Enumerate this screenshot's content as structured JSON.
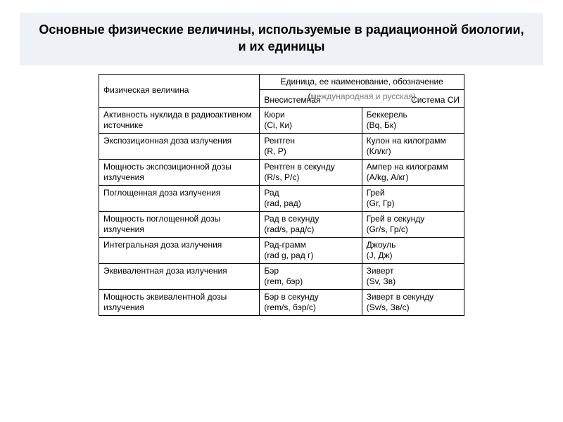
{
  "title": "Основные физические величины, используемые в радиационной биологии, и их единицы",
  "colors": {
    "page_bg": "#ffffff",
    "title_band_bg": "#eef2f6",
    "border": "#000000",
    "text": "#000000",
    "ghost_text": "#7a7a7a"
  },
  "typography": {
    "title_fontsize_pt": 14,
    "body_fontsize_pt": 9,
    "font_family": "Arial"
  },
  "table": {
    "column_widths_pct": [
      44,
      28,
      28
    ],
    "header": {
      "left": "Физическая величина",
      "right_top": "Единица, ее наименование, обозначение",
      "right_sub_paren": "(",
      "right_sub_ghost": "международная и русская)",
      "col1": "Внесистемная",
      "col2": "Система СИ"
    },
    "groups": [
      {
        "rows": [
          {
            "phys": "Активность нуклида в радиоактивном источнике",
            "off": "Кюри\n(Ci, Ки)",
            "si": "Беккерель\n(Bq, Бк)"
          },
          {
            "phys": "Экспозиционная доза излучения",
            "off": "Рентген\n(R, Р)",
            "si": "Кулон на килограмм\n(Кл/кг)"
          }
        ]
      },
      {
        "rows": [
          {
            "phys": "Мощность экспозиционной дозы излучения",
            "off": "Рентген в секунду\n(R/s, Р/с)",
            "si": "Ампер на килограмм\n(A/kg, А/кг)"
          }
        ]
      },
      {
        "rows": [
          {
            "phys": "Поглощенная доза излучения",
            "off": "Рад\n(rad, рад)",
            "si": "Грей\n(Gr, Гр)"
          }
        ]
      },
      {
        "rows": [
          {
            "phys": "Мощность поглощенной дозы излучения",
            "off": "Рад в секунду\n(rad/s, рад/с)",
            "si": "Грей в секунду\n(Gr/s, Гр/с)"
          }
        ]
      },
      {
        "rows": [
          {
            "phys": "Интегральная доза излучения",
            "off": "Рад-грамм\n(rad g, рад г)",
            "si": "Джоуль\n(J, Дж)"
          },
          {
            "phys": "Эквивалентная доза излучения",
            "off": "Бэр\n(rem, бэр)",
            "si": "Зиверт\n(Sv, Зв)"
          },
          {
            "phys": "Мощность эквивалентной дозы излучения",
            "off": "Бэр в секунду\n(rem/s, бэр/с)",
            "si": "Зиверт в секунду\n(Sv/s, Зв/с)"
          }
        ]
      }
    ]
  }
}
